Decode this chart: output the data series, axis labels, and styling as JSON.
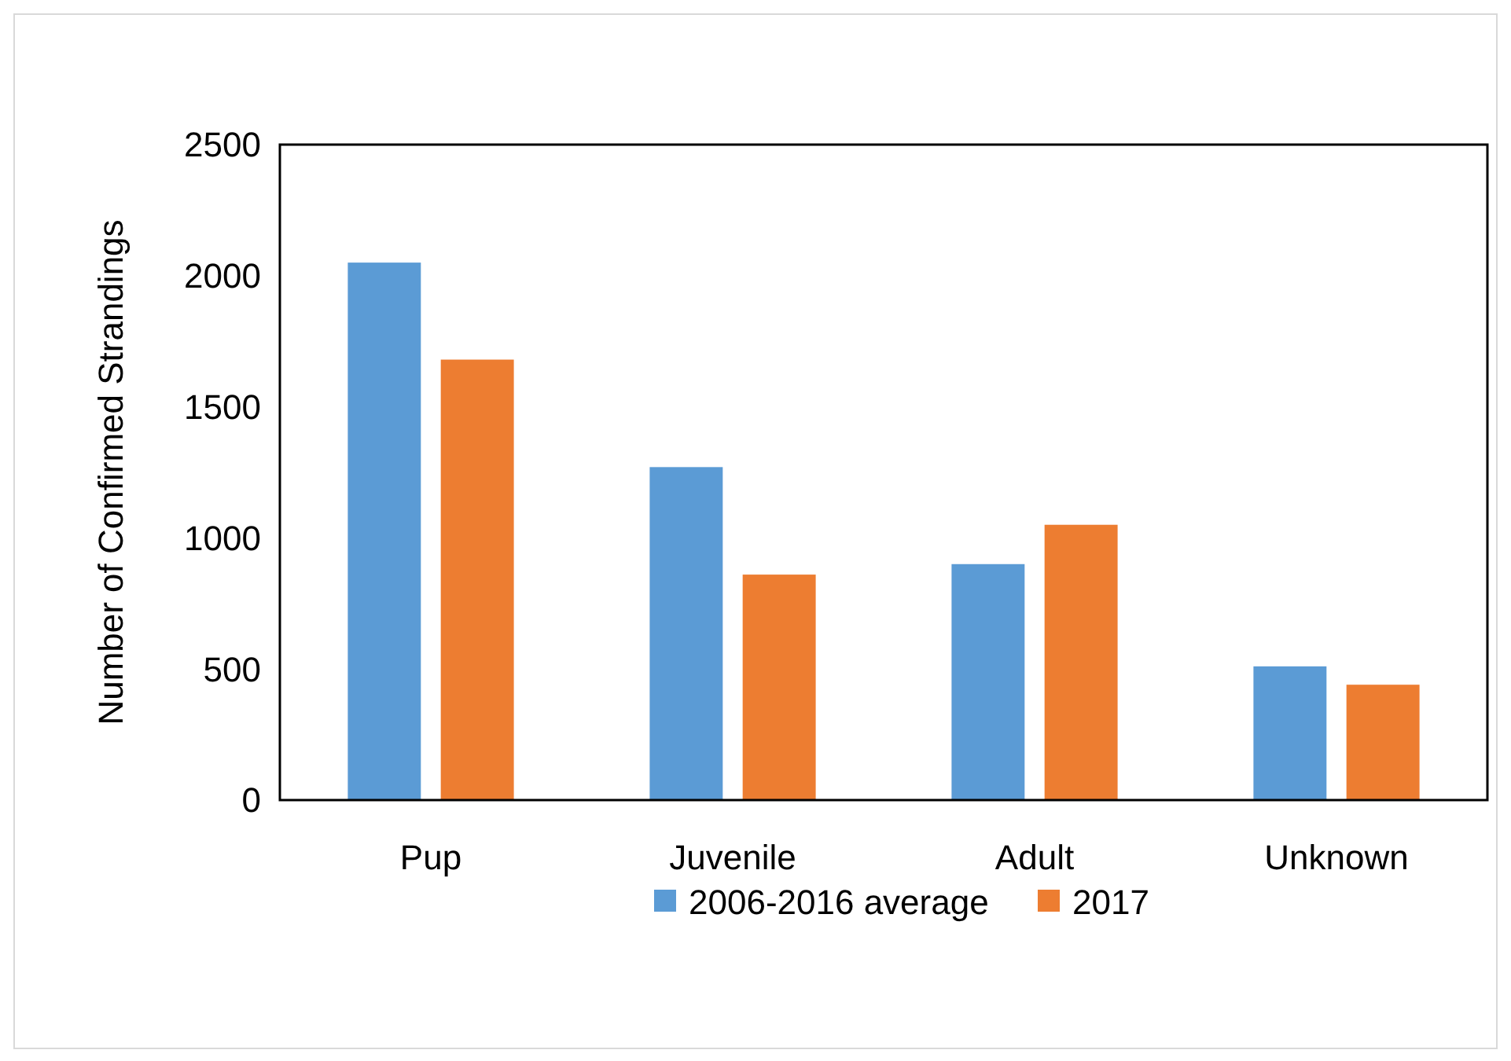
{
  "chart_data": {
    "type": "bar",
    "ylabel": "Number of Confirmed Strandings",
    "categories": [
      "Pup",
      "Juvenile",
      "Adult",
      "Unknown"
    ],
    "series": [
      {
        "name": "2006-2016 average",
        "color": "#5b9bd5",
        "values": [
          2050,
          1270,
          900,
          510
        ]
      },
      {
        "name": "2017",
        "color": "#ed7d31",
        "values": [
          1680,
          860,
          1050,
          440
        ]
      }
    ],
    "ylim": [
      0,
      2500
    ],
    "yticks": [
      0,
      500,
      1000,
      1500,
      2000,
      2500
    ],
    "legend": "bottom"
  }
}
